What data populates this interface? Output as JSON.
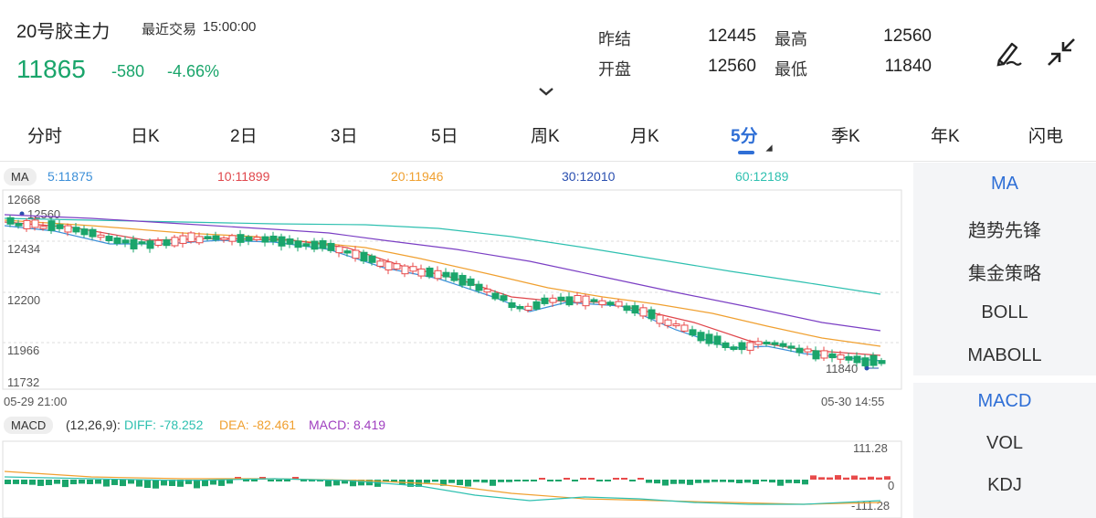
{
  "header": {
    "title": "20号胶主力",
    "trade_label": "最近交易",
    "trade_time": "15:00:00",
    "price": "11865",
    "change": "-580",
    "change_pct": "-4.66%",
    "stats": {
      "prev_close_label": "昨结",
      "prev_close": "12445",
      "high_label": "最高",
      "high": "12560",
      "open_label": "开盘",
      "open": "12560",
      "low_label": "最低",
      "low": "11840"
    },
    "icons": [
      "pen-icon",
      "collapse-icon",
      "chevron-down-icon"
    ]
  },
  "tabs": [
    "分时",
    "日K",
    "2日",
    "3日",
    "5日",
    "周K",
    "月K",
    "5分",
    "季K",
    "年K",
    "闪电"
  ],
  "active_tab": "5分",
  "ma_legend": {
    "pill": "MA",
    "items": [
      {
        "label": "5:11875",
        "color": "#3b8fd8"
      },
      {
        "label": "10:11899",
        "color": "#e0474c"
      },
      {
        "label": "20:11946",
        "color": "#f0a030"
      },
      {
        "label": "30:12010",
        "color": "#2a4fb0"
      },
      {
        "label": "60:12189",
        "color": "#2ec0b0"
      }
    ]
  },
  "main_axis": {
    "y_labels": [
      "12668",
      "12560",
      "12434",
      "12200",
      "11966",
      "11732"
    ],
    "low_marker": "11840",
    "x_start": "05-29 21:00",
    "x_end": "05-30 14:55"
  },
  "macd_legend": {
    "pill": "MACD",
    "params": "(12,26,9):",
    "diff": "DIFF: -78.252",
    "dea": "DEA: -82.461",
    "macd": "MACD: 8.419",
    "colors": {
      "diff": "#2ec0b0",
      "dea": "#f0a030",
      "macd": "#a040c0"
    }
  },
  "macd_axis": {
    "top": "111.28",
    "mid": "0",
    "bottom": "-111.28"
  },
  "right_panel": {
    "main_items": [
      "MA",
      "趋势先锋",
      "集金策略",
      "BOLL",
      "MABOLL"
    ],
    "sub_items": [
      "MACD",
      "VOL",
      "KDJ"
    ],
    "active_main": "MA",
    "active_sub": "MACD"
  },
  "colors": {
    "up": "#e84a4a",
    "down": "#1aa56b",
    "accent": "#2f6fd6"
  }
}
